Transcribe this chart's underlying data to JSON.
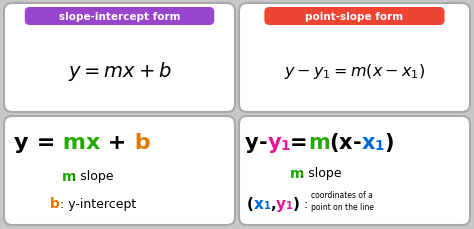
{
  "bg_color": "#c8c8c8",
  "panel_bg": "#ffffff",
  "colors": {
    "black": "#000000",
    "green": "#22aa00",
    "orange": "#e07800",
    "magenta": "#ee1199",
    "blue": "#0066dd",
    "purple": "#9933cc",
    "red": "#ee3322",
    "white": "#ffffff",
    "badge_purple": "#9944cc",
    "badge_red": "#ee4433"
  },
  "top_left_badge": "slope-intercept form",
  "top_right_badge": "point-slope form",
  "top_left_formula": "$y = mx + b$",
  "top_right_formula": "$y - y_1 = m(x - x_1)$"
}
